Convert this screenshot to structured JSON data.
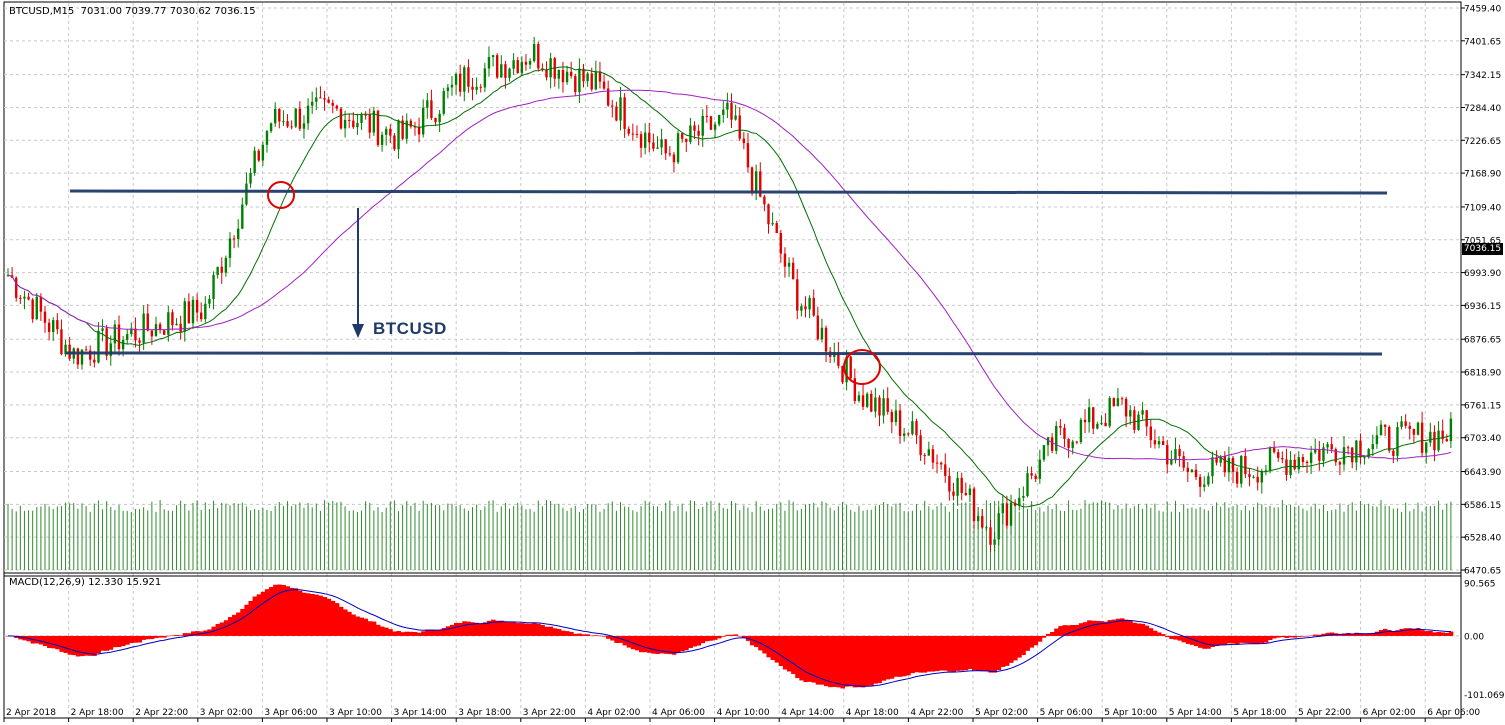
{
  "header": {
    "symbol": "BTCUSD,M15",
    "ohlc": "7031.00 7039.77 7030.62 7036.15"
  },
  "price_axis": {
    "labels": [
      "7459.40",
      "7401.65",
      "7342.15",
      "7284.40",
      "7226.65",
      "7168.90",
      "7109.40",
      "7051.65",
      "6993.90",
      "6936.15",
      "6876.65",
      "6818.90",
      "6761.15",
      "6703.40",
      "6643.90",
      "6586.15",
      "6528.40",
      "6470.65"
    ],
    "current_price": "7036.15"
  },
  "macd_axis": {
    "title": "MACD(12,26,9) 12.330 15.921",
    "labels": [
      "90.565",
      "0.00",
      "-101.069"
    ]
  },
  "time_axis": {
    "labels": [
      "2 Apr 2018",
      "2 Apr 18:00",
      "2 Apr 22:00",
      "3 Apr 02:00",
      "3 Apr 06:00",
      "3 Apr 10:00",
      "3 Apr 14:00",
      "3 Apr 18:00",
      "3 Apr 22:00",
      "4 Apr 02:00",
      "4 Apr 06:00",
      "4 Apr 10:00",
      "4 Apr 14:00",
      "4 Apr 18:00",
      "4 Apr 22:00",
      "5 Apr 02:00",
      "5 Apr 06:00",
      "5 Apr 10:00",
      "5 Apr 14:00",
      "5 Apr 18:00",
      "5 Apr 22:00",
      "6 Apr 02:00",
      "6 Apr 06:00"
    ]
  },
  "annotation": {
    "label": "BTCUSD"
  },
  "colors": {
    "bull": "#008000",
    "bear": "#E00000",
    "volume": "#2E8B2E",
    "ma_fast": "#007000",
    "ma_slow": "#A020C0",
    "level_line": "#1F3A6B",
    "macd_hist": "#FF0000",
    "macd_signal": "#0000C0",
    "grid": "#C8C8C8",
    "circle": "#E00000"
  },
  "chart_data": {
    "type": "candlestick",
    "symbol": "BTCUSD",
    "timeframe": "M15",
    "ylim": [
      6470.65,
      7459.4
    ],
    "macd_ylim": [
      -101.069,
      90.565
    ],
    "key_points": [
      {
        "x": "2 Apr 2018",
        "y": 6990
      },
      {
        "x": "2 Apr 18:00",
        "y": 6850
      },
      {
        "x": "2 Apr 22:00",
        "y": 6890
      },
      {
        "x": "3 Apr 02:00",
        "y": 6930
      },
      {
        "x": "3 Apr 06:00",
        "y": 7260
      },
      {
        "x": "3 Apr 10:00",
        "y": 7280
      },
      {
        "x": "3 Apr 14:00",
        "y": 7230
      },
      {
        "x": "3 Apr 18:00",
        "y": 7340
      },
      {
        "x": "3 Apr 22:00",
        "y": 7380
      },
      {
        "x": "4 Apr 02:00",
        "y": 7320
      },
      {
        "x": "4 Apr 06:00",
        "y": 7200
      },
      {
        "x": "4 Apr 10:00",
        "y": 7270
      },
      {
        "x": "4 Apr 14:00",
        "y": 6960
      },
      {
        "x": "4 Apr 18:00",
        "y": 6780
      },
      {
        "x": "4 Apr 22:00",
        "y": 6690
      },
      {
        "x": "5 Apr 02:00",
        "y": 6540
      },
      {
        "x": "5 Apr 06:00",
        "y": 6700
      },
      {
        "x": "5 Apr 10:00",
        "y": 6760
      },
      {
        "x": "5 Apr 14:00",
        "y": 6640
      },
      {
        "x": "5 Apr 18:00",
        "y": 6650
      },
      {
        "x": "5 Apr 22:00",
        "y": 6680
      },
      {
        "x": "6 Apr 02:00",
        "y": 6700
      },
      {
        "x": "6 Apr 06:00",
        "y": 6710
      }
    ],
    "levels": [
      7137,
      6855
    ]
  }
}
